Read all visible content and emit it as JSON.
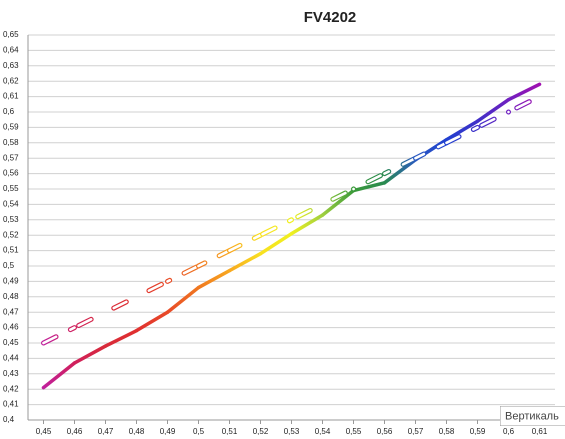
{
  "chart_data": {
    "type": "line",
    "title": "FV4202",
    "x": [
      0.45,
      0.46,
      0.47,
      0.48,
      0.49,
      0.5,
      0.51,
      0.52,
      0.53,
      0.54,
      0.55,
      0.56,
      0.57,
      0.58,
      0.59,
      0.6,
      0.61
    ],
    "series": [
      {
        "values": [
          0.421,
          0.437,
          0.448,
          0.458,
          0.47,
          0.486,
          0.497,
          0.508,
          0.521,
          0.533,
          0.549,
          0.554,
          0.569,
          0.582,
          0.594,
          0.608,
          0.618
        ],
        "colors": [
          "#c0209c",
          "#d0205c",
          "#d82a3a",
          "#e03030",
          "#e84a28",
          "#f07820",
          "#f8a820",
          "#f8e020",
          "#f0f020",
          "#a0d040",
          "#3a9a3a",
          "#2a8a50",
          "#2a5ac0",
          "#2040d0",
          "#4030c8",
          "#7020c0",
          "#a010b0"
        ],
        "dashed": false
      },
      {
        "values": [
          0.45,
          0.46,
          0.47,
          0.48,
          0.49,
          0.5,
          0.51,
          0.52,
          0.53,
          0.54,
          0.55,
          0.56,
          0.57,
          0.58,
          0.59,
          0.6,
          0.61
        ],
        "colors": [
          "#c0209c",
          "#d0205c",
          "#d82a3a",
          "#e03030",
          "#e84a28",
          "#f07820",
          "#f8a820",
          "#f8e020",
          "#f0f020",
          "#a0d040",
          "#3a9a3a",
          "#2a8a50",
          "#2a5ac0",
          "#2040d0",
          "#4030c8",
          "#7020c0",
          "#a010b0"
        ],
        "dashed": true
      }
    ],
    "xlim": [
      0.445,
      0.615
    ],
    "xticks": [
      {
        "value": 0.45,
        "label": "0,45"
      },
      {
        "value": 0.46,
        "label": "0,46"
      },
      {
        "value": 0.47,
        "label": "0,47"
      },
      {
        "value": 0.48,
        "label": "0,48"
      },
      {
        "value": 0.49,
        "label": "0,49"
      },
      {
        "value": 0.5,
        "label": "0,5"
      },
      {
        "value": 0.51,
        "label": "0,51"
      },
      {
        "value": 0.52,
        "label": "0,52"
      },
      {
        "value": 0.53,
        "label": "0,53"
      },
      {
        "value": 0.54,
        "label": "0,54"
      },
      {
        "value": 0.55,
        "label": "0,55"
      },
      {
        "value": 0.56,
        "label": "0,56"
      },
      {
        "value": 0.57,
        "label": "0,57"
      },
      {
        "value": 0.58,
        "label": "0,58"
      },
      {
        "value": 0.59,
        "label": "0,59"
      },
      {
        "value": 0.6,
        "label": "0,6"
      },
      {
        "value": 0.61,
        "label": "0,61"
      }
    ],
    "ylim": [
      0.4,
      0.65
    ],
    "yticks": [
      {
        "value": 0.4,
        "label": "0,4"
      },
      {
        "value": 0.41,
        "label": "0,41"
      },
      {
        "value": 0.42,
        "label": "0,42"
      },
      {
        "value": 0.43,
        "label": "0,43"
      },
      {
        "value": 0.44,
        "label": "0,44"
      },
      {
        "value": 0.45,
        "label": "0,45"
      },
      {
        "value": 0.46,
        "label": "0,46"
      },
      {
        "value": 0.47,
        "label": "0,47"
      },
      {
        "value": 0.48,
        "label": "0,48"
      },
      {
        "value": 0.49,
        "label": "0,49"
      },
      {
        "value": 0.5,
        "label": "0,5"
      },
      {
        "value": 0.51,
        "label": "0,51"
      },
      {
        "value": 0.52,
        "label": "0,52"
      },
      {
        "value": 0.53,
        "label": "0,53"
      },
      {
        "value": 0.54,
        "label": "0,54"
      },
      {
        "value": 0.55,
        "label": "0,55"
      },
      {
        "value": 0.56,
        "label": "0,56"
      },
      {
        "value": 0.57,
        "label": "0,57"
      },
      {
        "value": 0.58,
        "label": "0,58"
      },
      {
        "value": 0.59,
        "label": "0,59"
      },
      {
        "value": 0.6,
        "label": "0,6"
      },
      {
        "value": 0.61,
        "label": "0,61"
      },
      {
        "value": 0.62,
        "label": "0,62"
      },
      {
        "value": 0.63,
        "label": "0,63"
      },
      {
        "value": 0.64,
        "label": "0,64"
      },
      {
        "value": 0.65,
        "label": "0,65"
      }
    ],
    "grid": true,
    "tooltip": "Вертикаль"
  }
}
